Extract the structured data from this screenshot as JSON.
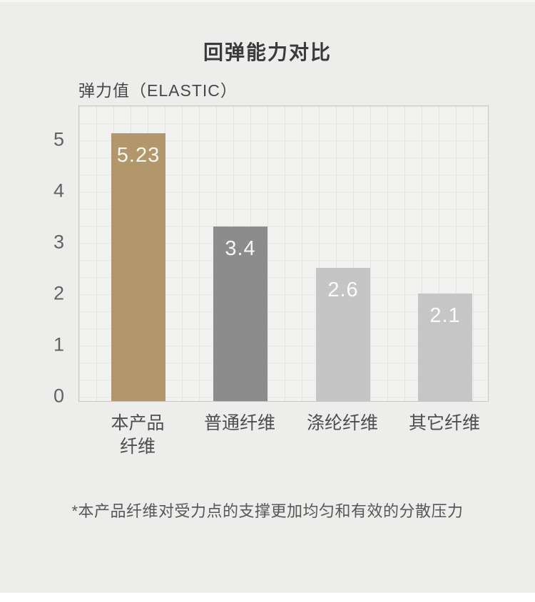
{
  "chart": {
    "title": "回弹能力对比",
    "ylabel": "弹力值（ELASTIC）",
    "note": "*本产品纤维对受力点的支撑更加均匀和有效的分散压力"
  },
  "chart_data": {
    "type": "bar",
    "title": "回弹能力对比",
    "ylabel": "弹力值（ELASTIC）",
    "xlabel": "",
    "categories": [
      "本产品纤维",
      "普通纤维",
      "涤纶纤维",
      "其它纤维"
    ],
    "category_lines": [
      [
        "本产品",
        "纤维"
      ],
      [
        "普通纤维"
      ],
      [
        "涤纶纤维"
      ],
      [
        "其它纤维"
      ]
    ],
    "values": [
      5.23,
      3.4,
      2.6,
      2.1
    ],
    "value_labels": [
      "5.23",
      "3.4",
      "2.6",
      "2.1"
    ],
    "bar_colors": [
      "#b1976a",
      "#8c8c8c",
      "#c5c5c6",
      "#c6c6c7"
    ],
    "yticks": [
      0,
      1,
      2,
      3,
      4,
      5
    ],
    "ylim": [
      0,
      5.78
    ],
    "grid": true,
    "legend": false,
    "note": "*本产品纤维对受力点的支撑更加均匀和有效的分散压力",
    "colors": {
      "page_background": "#ededec",
      "plot_background": "#f1f1f0",
      "plot_border": "#c7c7c6",
      "title_text": "#3b3b3b",
      "tick_text": "#626262",
      "bar_value_text": "#ffffff"
    }
  }
}
